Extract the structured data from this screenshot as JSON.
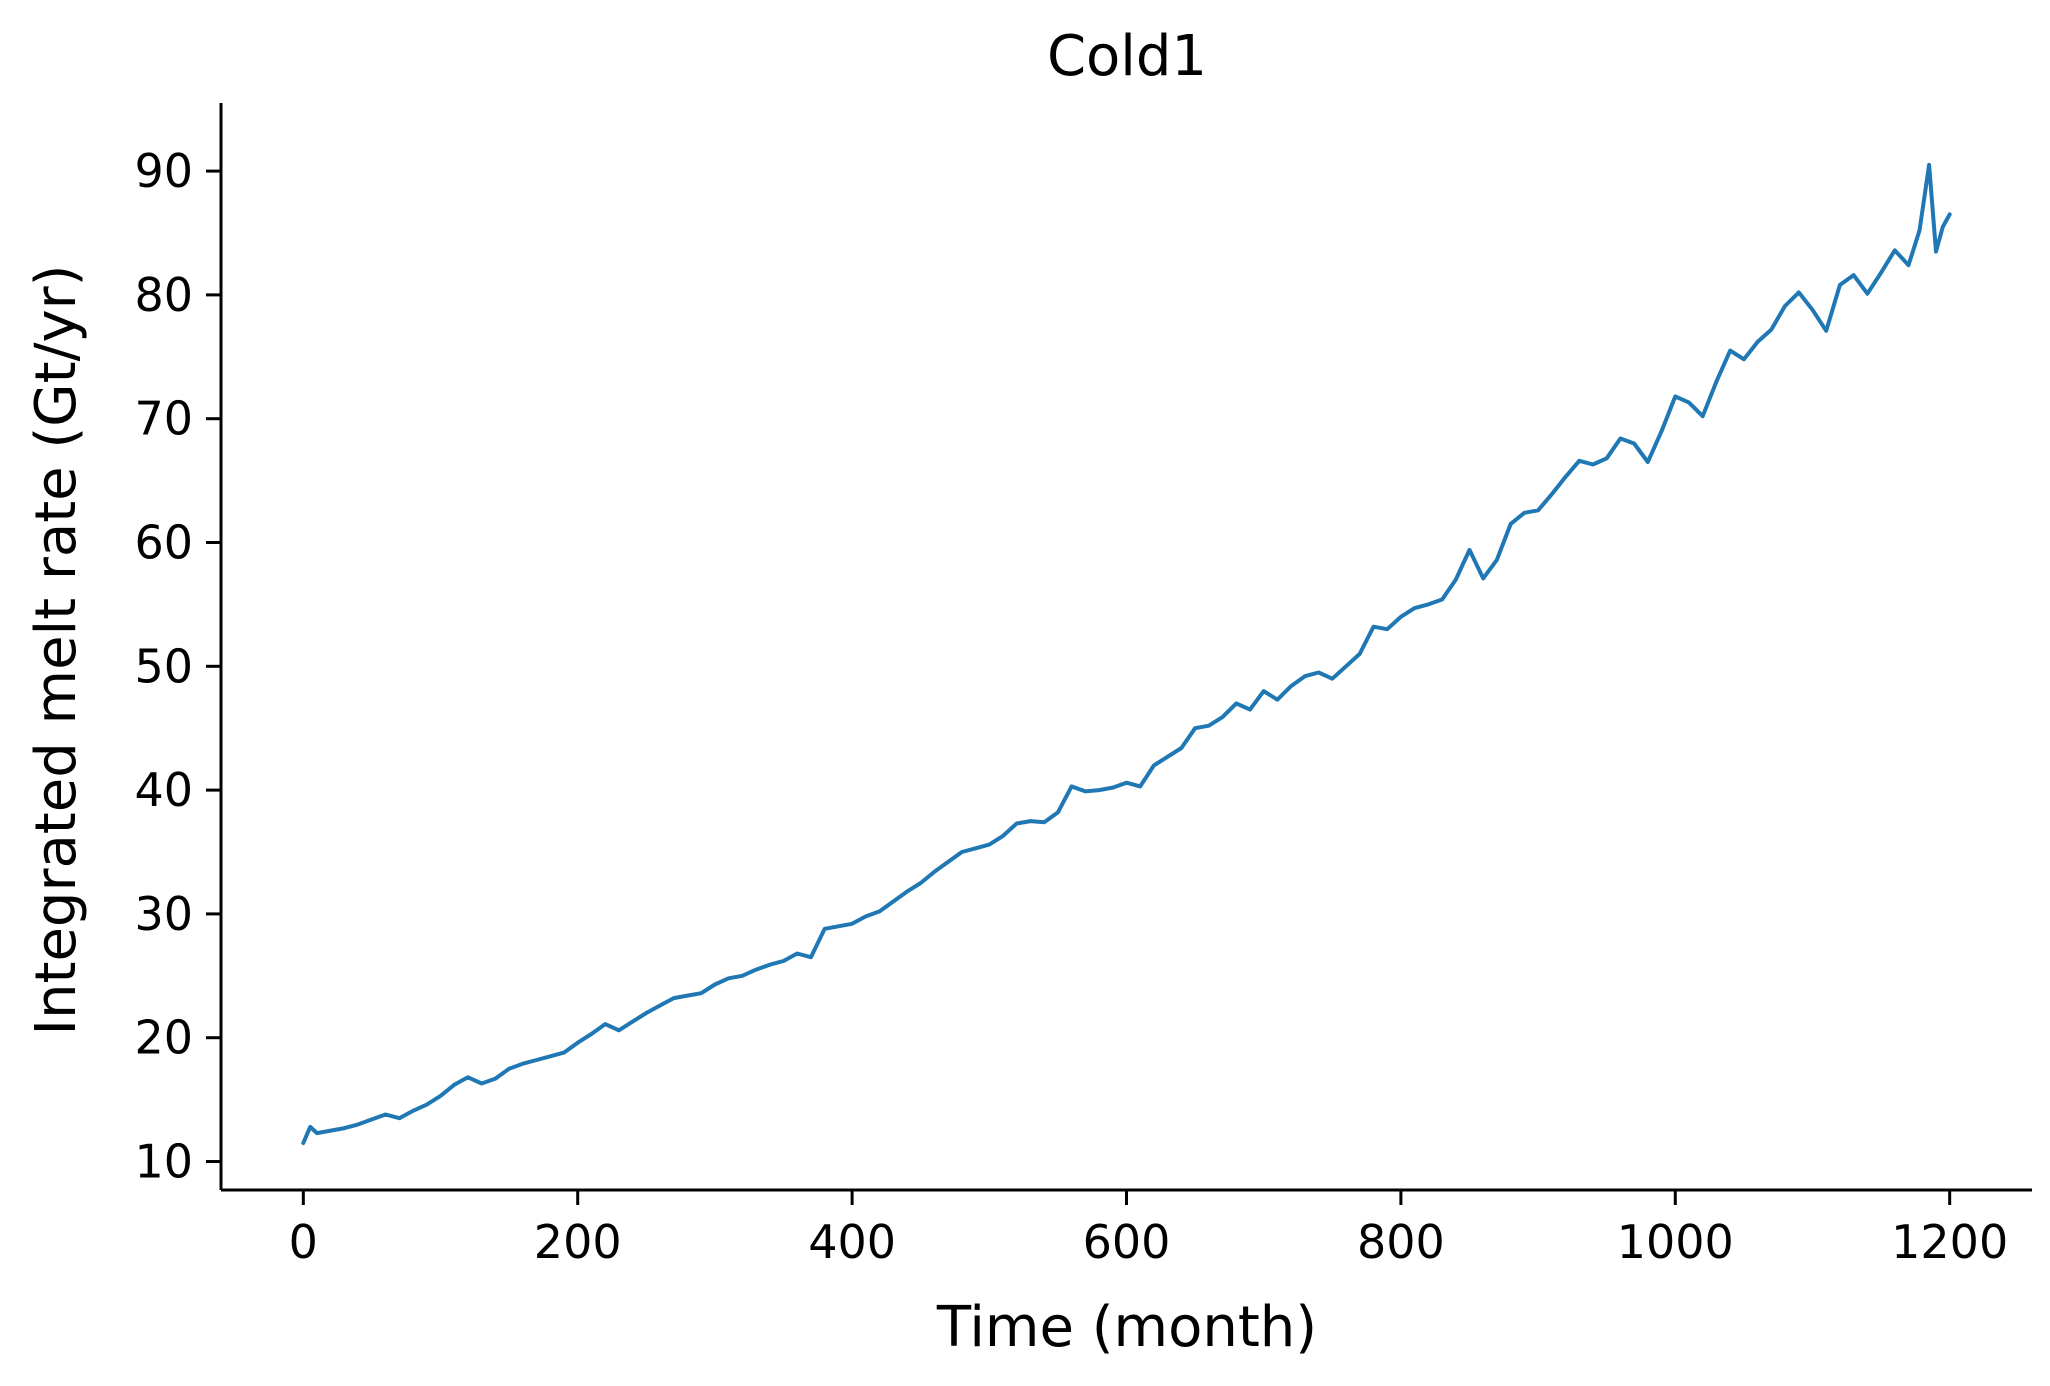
{
  "chart_data": {
    "type": "line",
    "title": "Cold1",
    "xlabel": "Time (month)",
    "ylabel": "Integrated melt rate (Gt/yr)",
    "xlim": [
      -60,
      1260
    ],
    "ylim": [
      7.7,
      95.5
    ],
    "xticks": [
      0,
      200,
      400,
      600,
      800,
      1000,
      1200
    ],
    "yticks": [
      10,
      20,
      30,
      40,
      50,
      60,
      70,
      80,
      90
    ],
    "grid": false,
    "color": "#1f77b4",
    "series": [
      {
        "x": [
          0,
          5,
          10,
          20,
          30,
          40,
          50,
          60,
          70,
          80,
          90,
          100,
          110,
          120,
          130,
          140,
          150,
          160,
          170,
          180,
          190,
          200,
          210,
          220,
          230,
          240,
          250,
          260,
          270,
          280,
          290,
          300,
          310,
          320,
          330,
          340,
          350,
          360,
          370,
          380,
          390,
          400,
          410,
          420,
          430,
          440,
          450,
          460,
          470,
          480,
          490,
          500,
          510,
          520,
          530,
          540,
          550,
          560,
          570,
          580,
          590,
          600,
          610,
          620,
          630,
          640,
          650,
          660,
          670,
          680,
          690,
          700,
          710,
          720,
          730,
          740,
          750,
          760,
          770,
          780,
          790,
          800,
          810,
          820,
          830,
          840,
          850,
          860,
          870,
          880,
          890,
          900,
          910,
          920,
          930,
          940,
          950,
          960,
          970,
          980,
          990,
          1000,
          1010,
          1020,
          1030,
          1040,
          1050,
          1060,
          1070,
          1080,
          1090,
          1100,
          1110,
          1120,
          1130,
          1140,
          1150,
          1160,
          1170,
          1178,
          1185,
          1190,
          1195,
          1200
        ],
        "y": [
          11.5,
          12.8,
          12.3,
          12.5,
          12.7,
          13.0,
          13.4,
          13.8,
          13.5,
          14.1,
          14.6,
          15.3,
          16.2,
          16.8,
          16.3,
          16.7,
          17.5,
          17.9,
          18.2,
          18.5,
          18.8,
          19.6,
          20.3,
          21.1,
          20.6,
          21.3,
          22.0,
          22.6,
          23.2,
          23.4,
          23.6,
          24.3,
          24.8,
          25.0,
          25.5,
          25.9,
          26.2,
          26.8,
          26.5,
          28.8,
          29.0,
          29.2,
          29.8,
          30.2,
          31.0,
          31.8,
          32.5,
          33.4,
          34.2,
          35.0,
          35.3,
          35.6,
          36.3,
          37.3,
          37.5,
          37.4,
          38.2,
          40.3,
          39.9,
          40.0,
          40.2,
          40.6,
          40.3,
          42.0,
          42.7,
          43.4,
          45.0,
          45.2,
          45.9,
          47.0,
          46.5,
          48.0,
          47.3,
          48.4,
          49.2,
          49.5,
          49.0,
          50.0,
          51.0,
          53.2,
          53.0,
          54.0,
          54.7,
          55.0,
          55.4,
          57.0,
          59.4,
          57.1,
          58.6,
          61.5,
          62.4,
          62.6,
          63.9,
          65.3,
          66.6,
          66.3,
          66.8,
          68.4,
          68.0,
          66.5,
          69.0,
          71.8,
          71.3,
          70.2,
          73.0,
          75.5,
          74.8,
          76.2,
          77.2,
          79.1,
          80.2,
          78.8,
          77.1,
          80.8,
          81.6,
          80.1,
          81.8,
          83.6,
          82.4,
          85.2,
          90.5,
          83.5,
          85.5,
          86.5
        ]
      }
    ]
  }
}
